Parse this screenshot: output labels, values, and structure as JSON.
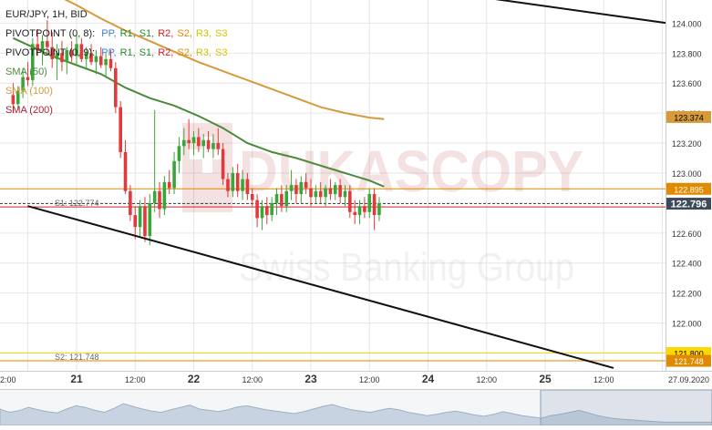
{
  "header": {
    "symbol": "EUR/JPY, 1H, BID",
    "pivot1_label": "PIVOTPOINT (0, 8):",
    "pivot2_label": "PIVOTPOINT (0, 9):",
    "pivot_levels": [
      "PP,",
      "R1,",
      "S1,",
      "R2,",
      "S2,",
      "R3,",
      "S3"
    ],
    "pivot_level_colors": [
      "#3b7fd4",
      "#2a8a2a",
      "#2a8a2a",
      "#cc2222",
      "#e08a00",
      "#c8c800",
      "#e0c000"
    ],
    "sma50": "SMA (50)",
    "sma100": "SMA (100)",
    "sma200": "SMA (200)",
    "sma_colors": {
      "sma50": "#4a8a3a",
      "sma100": "#d69a3a",
      "sma200": "#aa2233"
    }
  },
  "watermark": {
    "brand": "DUKASCOPY",
    "tagline": "Swiss Banking Group"
  },
  "levels": {
    "s1_label": "S1: 122.774",
    "s2_label": "S2: 121.748"
  },
  "price_badges": [
    {
      "label": "123.374",
      "value": 123.374,
      "bg": "#d69a3a",
      "fg": "#000000"
    },
    {
      "label": "122.895",
      "value": 122.895,
      "bg": "#e08a00",
      "fg": "#ffffff"
    },
    {
      "label": "122.796",
      "value": 122.796,
      "bg": "#3c4a5a",
      "fg": "#ffffff"
    },
    {
      "label": "121.800",
      "value": 121.8,
      "bg": "#ffd800",
      "fg": "#000000"
    },
    {
      "label": "121.748",
      "value": 121.748,
      "bg": "#e08a00",
      "fg": "#ffffff"
    }
  ],
  "chart_data": {
    "type": "candlestick",
    "title": "EUR/JPY, 1H, BID",
    "y_ticks": [
      "122.000",
      "122.200",
      "122.400",
      "122.600",
      "122.800",
      "123.000",
      "123.200",
      "123.400",
      "123.600",
      "123.800",
      "124.000"
    ],
    "y_tick_values": [
      122.0,
      122.2,
      122.4,
      122.6,
      122.8,
      123.0,
      123.2,
      123.4,
      123.6,
      123.8,
      124.0
    ],
    "ylim": [
      121.7,
      124.2
    ],
    "x_tick_labels": [
      "2:00",
      "21",
      "12:00",
      "22",
      "12:00",
      "23",
      "12:00",
      "24",
      "12:00",
      "25",
      "12:00",
      "27.09.2020"
    ],
    "x_tick_bold": [
      false,
      true,
      false,
      true,
      false,
      true,
      false,
      true,
      false,
      true,
      false,
      false
    ],
    "x_tick_hours": [
      -10,
      0,
      12,
      24,
      36,
      48,
      60,
      72,
      84,
      96,
      108,
      120
    ],
    "candles": [
      {
        "h": -13,
        "o": 123.52,
        "hi": 123.6,
        "lo": 123.4,
        "c": 123.46
      },
      {
        "h": -12,
        "o": 123.46,
        "hi": 123.58,
        "lo": 123.42,
        "c": 123.55
      },
      {
        "h": -11,
        "o": 123.55,
        "hi": 123.7,
        "lo": 123.5,
        "c": 123.64
      },
      {
        "h": -10,
        "o": 123.64,
        "hi": 123.74,
        "lo": 123.58,
        "c": 123.62
      },
      {
        "h": -9,
        "o": 123.62,
        "hi": 123.9,
        "lo": 123.58,
        "c": 123.86
      },
      {
        "h": -8,
        "o": 123.86,
        "hi": 123.96,
        "lo": 123.78,
        "c": 123.82
      },
      {
        "h": -7,
        "o": 123.82,
        "hi": 123.92,
        "lo": 123.72,
        "c": 123.88
      },
      {
        "h": -6,
        "o": 123.88,
        "hi": 124.02,
        "lo": 123.8,
        "c": 123.84
      },
      {
        "h": -5,
        "o": 123.84,
        "hi": 123.94,
        "lo": 123.7,
        "c": 123.76
      },
      {
        "h": -4,
        "o": 123.76,
        "hi": 123.86,
        "lo": 123.62,
        "c": 123.8
      },
      {
        "h": -3,
        "o": 123.8,
        "hi": 123.88,
        "lo": 123.68,
        "c": 123.74
      },
      {
        "h": -2,
        "o": 123.74,
        "hi": 123.84,
        "lo": 123.66,
        "c": 123.82
      },
      {
        "h": -1,
        "o": 123.82,
        "hi": 123.88,
        "lo": 123.74,
        "c": 123.78
      },
      {
        "h": 0,
        "o": 123.78,
        "hi": 123.92,
        "lo": 123.72,
        "c": 123.86
      },
      {
        "h": 1,
        "o": 123.86,
        "hi": 123.9,
        "lo": 123.74,
        "c": 123.76
      },
      {
        "h": 2,
        "o": 123.76,
        "hi": 123.84,
        "lo": 123.7,
        "c": 123.8
      },
      {
        "h": 3,
        "o": 123.8,
        "hi": 123.86,
        "lo": 123.72,
        "c": 123.74
      },
      {
        "h": 4,
        "o": 123.74,
        "hi": 123.82,
        "lo": 123.66,
        "c": 123.78
      },
      {
        "h": 5,
        "o": 123.78,
        "hi": 123.84,
        "lo": 123.7,
        "c": 123.72
      },
      {
        "h": 6,
        "o": 123.72,
        "hi": 123.8,
        "lo": 123.64,
        "c": 123.76
      },
      {
        "h": 7,
        "o": 123.76,
        "hi": 123.82,
        "lo": 123.68,
        "c": 123.7
      },
      {
        "h": 8,
        "o": 123.7,
        "hi": 123.74,
        "lo": 123.4,
        "c": 123.44
      },
      {
        "h": 9,
        "o": 123.44,
        "hi": 123.48,
        "lo": 123.1,
        "c": 123.14
      },
      {
        "h": 10,
        "o": 123.14,
        "hi": 123.22,
        "lo": 122.86,
        "c": 122.88
      },
      {
        "h": 11,
        "o": 122.88,
        "hi": 122.92,
        "lo": 122.68,
        "c": 122.72
      },
      {
        "h": 12,
        "o": 122.72,
        "hi": 122.78,
        "lo": 122.56,
        "c": 122.64
      },
      {
        "h": 13,
        "o": 122.64,
        "hi": 122.82,
        "lo": 122.58,
        "c": 122.78
      },
      {
        "h": 14,
        "o": 122.78,
        "hi": 122.84,
        "lo": 122.54,
        "c": 122.58
      },
      {
        "h": 15,
        "o": 122.58,
        "hi": 122.86,
        "lo": 122.52,
        "c": 122.8
      },
      {
        "h": 16,
        "o": 122.8,
        "hi": 123.42,
        "lo": 122.74,
        "c": 122.88
      },
      {
        "h": 17,
        "o": 122.88,
        "hi": 122.94,
        "lo": 122.7,
        "c": 122.76
      },
      {
        "h": 18,
        "o": 122.76,
        "hi": 122.98,
        "lo": 122.72,
        "c": 122.94
      },
      {
        "h": 19,
        "o": 122.94,
        "hi": 123.02,
        "lo": 122.86,
        "c": 122.9
      },
      {
        "h": 20,
        "o": 122.9,
        "hi": 123.14,
        "lo": 122.86,
        "c": 123.08
      },
      {
        "h": 21,
        "o": 123.08,
        "hi": 123.24,
        "lo": 123.0,
        "c": 123.18
      },
      {
        "h": 22,
        "o": 123.18,
        "hi": 123.3,
        "lo": 123.12,
        "c": 123.22
      },
      {
        "h": 23,
        "o": 123.22,
        "hi": 123.36,
        "lo": 123.16,
        "c": 123.2
      },
      {
        "h": 24,
        "o": 123.2,
        "hi": 123.28,
        "lo": 123.12,
        "c": 123.24
      },
      {
        "h": 25,
        "o": 123.24,
        "hi": 123.3,
        "lo": 123.14,
        "c": 123.18
      },
      {
        "h": 26,
        "o": 123.18,
        "hi": 123.26,
        "lo": 123.1,
        "c": 123.22
      },
      {
        "h": 27,
        "o": 123.22,
        "hi": 123.28,
        "lo": 123.14,
        "c": 123.16
      },
      {
        "h": 28,
        "o": 123.16,
        "hi": 123.26,
        "lo": 123.1,
        "c": 123.2
      },
      {
        "h": 29,
        "o": 123.2,
        "hi": 123.3,
        "lo": 123.12,
        "c": 123.16
      },
      {
        "h": 30,
        "o": 123.16,
        "hi": 123.2,
        "lo": 122.92,
        "c": 122.96
      },
      {
        "h": 31,
        "o": 122.96,
        "hi": 123.0,
        "lo": 122.84,
        "c": 122.88
      },
      {
        "h": 32,
        "o": 122.88,
        "hi": 123.04,
        "lo": 122.84,
        "c": 123.0
      },
      {
        "h": 33,
        "o": 123.0,
        "hi": 123.06,
        "lo": 122.84,
        "c": 122.88
      },
      {
        "h": 34,
        "o": 122.88,
        "hi": 123.02,
        "lo": 122.82,
        "c": 122.96
      },
      {
        "h": 35,
        "o": 122.96,
        "hi": 123.0,
        "lo": 122.82,
        "c": 122.86
      },
      {
        "h": 36,
        "o": 122.86,
        "hi": 122.9,
        "lo": 122.78,
        "c": 122.82
      },
      {
        "h": 37,
        "o": 122.82,
        "hi": 122.86,
        "lo": 122.64,
        "c": 122.7
      },
      {
        "h": 38,
        "o": 122.7,
        "hi": 122.82,
        "lo": 122.62,
        "c": 122.78
      },
      {
        "h": 39,
        "o": 122.78,
        "hi": 122.84,
        "lo": 122.66,
        "c": 122.72
      },
      {
        "h": 40,
        "o": 122.72,
        "hi": 122.84,
        "lo": 122.68,
        "c": 122.8
      },
      {
        "h": 41,
        "o": 122.8,
        "hi": 122.9,
        "lo": 122.72,
        "c": 122.86
      },
      {
        "h": 42,
        "o": 122.86,
        "hi": 122.92,
        "lo": 122.74,
        "c": 122.78
      },
      {
        "h": 43,
        "o": 122.78,
        "hi": 122.92,
        "lo": 122.74,
        "c": 122.88
      },
      {
        "h": 44,
        "o": 122.88,
        "hi": 123.02,
        "lo": 122.82,
        "c": 122.92
      },
      {
        "h": 45,
        "o": 122.92,
        "hi": 122.96,
        "lo": 122.8,
        "c": 122.86
      },
      {
        "h": 46,
        "o": 122.86,
        "hi": 122.98,
        "lo": 122.8,
        "c": 122.94
      },
      {
        "h": 47,
        "o": 122.94,
        "hi": 123.0,
        "lo": 122.86,
        "c": 122.9
      },
      {
        "h": 48,
        "o": 122.9,
        "hi": 122.96,
        "lo": 122.78,
        "c": 122.84
      },
      {
        "h": 49,
        "o": 122.84,
        "hi": 122.92,
        "lo": 122.8,
        "c": 122.88
      },
      {
        "h": 50,
        "o": 122.88,
        "hi": 122.94,
        "lo": 122.8,
        "c": 122.84
      },
      {
        "h": 51,
        "o": 122.84,
        "hi": 122.92,
        "lo": 122.78,
        "c": 122.9
      },
      {
        "h": 52,
        "o": 122.9,
        "hi": 122.96,
        "lo": 122.82,
        "c": 122.86
      },
      {
        "h": 53,
        "o": 122.86,
        "hi": 122.94,
        "lo": 122.82,
        "c": 122.92
      },
      {
        "h": 54,
        "o": 122.92,
        "hi": 122.96,
        "lo": 122.8,
        "c": 122.84
      },
      {
        "h": 55,
        "o": 122.84,
        "hi": 122.92,
        "lo": 122.78,
        "c": 122.88
      },
      {
        "h": 56,
        "o": 122.88,
        "hi": 122.92,
        "lo": 122.7,
        "c": 122.74
      },
      {
        "h": 57,
        "o": 122.74,
        "hi": 122.82,
        "lo": 122.66,
        "c": 122.72
      },
      {
        "h": 58,
        "o": 122.72,
        "hi": 122.82,
        "lo": 122.66,
        "c": 122.78
      },
      {
        "h": 59,
        "o": 122.78,
        "hi": 122.84,
        "lo": 122.7,
        "c": 122.74
      },
      {
        "h": 60,
        "o": 122.74,
        "hi": 122.9,
        "lo": 122.7,
        "c": 122.86
      },
      {
        "h": 61,
        "o": 122.86,
        "hi": 122.9,
        "lo": 122.62,
        "c": 122.72
      },
      {
        "h": 62,
        "o": 122.72,
        "hi": 122.84,
        "lo": 122.68,
        "c": 122.8
      }
    ],
    "sma50": {
      "name": "SMA (50)",
      "points": [
        [
          -13,
          123.9
        ],
        [
          -9,
          123.84
        ],
        [
          -5,
          123.78
        ],
        [
          0,
          123.72
        ],
        [
          5,
          123.66
        ],
        [
          10,
          123.57
        ],
        [
          15,
          123.5
        ],
        [
          20,
          123.45
        ],
        [
          25,
          123.38
        ],
        [
          30,
          123.3
        ],
        [
          35,
          123.2
        ],
        [
          40,
          123.14
        ],
        [
          45,
          123.1
        ],
        [
          50,
          123.05
        ],
        [
          55,
          123.0
        ],
        [
          60,
          122.95
        ],
        [
          63,
          122.91
        ]
      ]
    },
    "sma100": {
      "name": "SMA (100)",
      "points": [
        [
          -5,
          124.2
        ],
        [
          0,
          124.12
        ],
        [
          5,
          124.03
        ],
        [
          10,
          123.95
        ],
        [
          15,
          123.88
        ],
        [
          20,
          123.81
        ],
        [
          25,
          123.74
        ],
        [
          30,
          123.68
        ],
        [
          35,
          123.62
        ],
        [
          40,
          123.56
        ],
        [
          45,
          123.5
        ],
        [
          50,
          123.44
        ],
        [
          55,
          123.4
        ],
        [
          60,
          123.37
        ],
        [
          63,
          123.36
        ]
      ]
    },
    "trendlines": [
      {
        "from": [
          -10,
          122.78
        ],
        "to": [
          110,
          121.7
        ]
      },
      {
        "from": [
          77,
          124.2
        ],
        "to": [
          121,
          124.0
        ]
      }
    ],
    "horizontal_lines": [
      {
        "value": 122.895,
        "color": "#e08a00",
        "style": "solid"
      },
      {
        "value": 122.796,
        "color": "#3c4a5a",
        "style": "dashed"
      },
      {
        "value": 122.774,
        "color": "#cc2222",
        "style": "solid"
      },
      {
        "value": 121.8,
        "color": "#ffd800",
        "style": "solid"
      },
      {
        "value": 121.748,
        "color": "#e08a00",
        "style": "solid"
      }
    ],
    "volume_profile": [
      0.5,
      0.4,
      0.45,
      0.55,
      0.48,
      0.42,
      0.38,
      0.5,
      0.6,
      0.55,
      0.46,
      0.4,
      0.52,
      0.66,
      0.58,
      0.5,
      0.44,
      0.4,
      0.48,
      0.55,
      0.62,
      0.5,
      0.46,
      0.42,
      0.48,
      0.56,
      0.6,
      0.54,
      0.48,
      0.44,
      0.4,
      0.36,
      0.42,
      0.5,
      0.58,
      0.64,
      0.55,
      0.48,
      0.44,
      0.4,
      0.46,
      0.52,
      0.48,
      0.4,
      0.35,
      0.3,
      0.34,
      0.4,
      0.44,
      0.38,
      0.32,
      0.28,
      0.34,
      0.42,
      0.36,
      0.3,
      0.26,
      0.22,
      0.3,
      0.34,
      0.4,
      0.46,
      0.38,
      0.3,
      0.24,
      0.2,
      0.18,
      0.16,
      0.14,
      0.12,
      0.1,
      0.1,
      0.1,
      0.1,
      0.1,
      0.1
    ]
  }
}
